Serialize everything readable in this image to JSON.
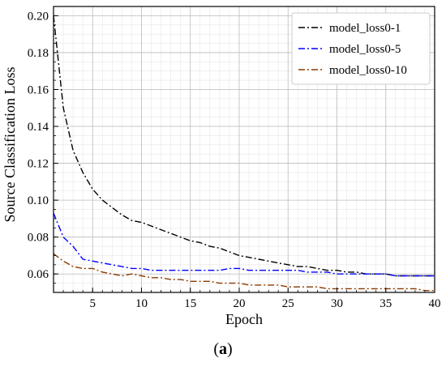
{
  "caption": {
    "open": "(",
    "letter": "a",
    "close": ")"
  },
  "chart_data": {
    "type": "line",
    "xlabel": "Epoch",
    "ylabel": "Source Classification Loss",
    "xlim": [
      1,
      40
    ],
    "ylim": [
      0.05,
      0.205
    ],
    "xticks": [
      5,
      10,
      15,
      20,
      25,
      30,
      35,
      40
    ],
    "yticks": [
      0.06,
      0.08,
      0.1,
      0.12,
      0.14,
      0.16,
      0.18,
      0.2
    ],
    "ytick_labels": [
      "0.06",
      "0.08",
      "0.10",
      "0.12",
      "0.14",
      "0.16",
      "0.18",
      "0.20"
    ],
    "grid": true,
    "minor_grid": true,
    "legend_position": "top-right",
    "x": [
      1,
      2,
      3,
      4,
      5,
      6,
      7,
      8,
      9,
      10,
      11,
      12,
      13,
      14,
      15,
      16,
      17,
      18,
      19,
      20,
      21,
      22,
      23,
      24,
      25,
      26,
      27,
      28,
      29,
      30,
      31,
      32,
      33,
      34,
      35,
      36,
      37,
      38,
      39,
      40
    ],
    "series": [
      {
        "name": "model_loss0-1",
        "color": "#000000",
        "dash": "dashdot",
        "values": [
          0.2,
          0.15,
          0.127,
          0.115,
          0.106,
          0.1,
          0.096,
          0.092,
          0.089,
          0.088,
          0.086,
          0.084,
          0.082,
          0.08,
          0.078,
          0.077,
          0.075,
          0.074,
          0.072,
          0.07,
          0.069,
          0.068,
          0.067,
          0.066,
          0.065,
          0.064,
          0.064,
          0.063,
          0.062,
          0.062,
          0.061,
          0.061,
          0.06,
          0.06,
          0.06,
          0.059,
          0.059,
          0.059,
          0.059,
          0.059
        ]
      },
      {
        "name": "model_loss0-5",
        "color": "#0000ff",
        "dash": "dashdot",
        "values": [
          0.093,
          0.08,
          0.075,
          0.068,
          0.067,
          0.066,
          0.065,
          0.064,
          0.063,
          0.063,
          0.062,
          0.062,
          0.062,
          0.062,
          0.062,
          0.062,
          0.062,
          0.062,
          0.063,
          0.063,
          0.062,
          0.062,
          0.062,
          0.062,
          0.062,
          0.062,
          0.061,
          0.061,
          0.061,
          0.06,
          0.06,
          0.06,
          0.06,
          0.06,
          0.06,
          0.059,
          0.059,
          0.059,
          0.059,
          0.059
        ]
      },
      {
        "name": "model_loss0-10",
        "color": "#8b3a00",
        "dash": "dashdot",
        "values": [
          0.071,
          0.067,
          0.064,
          0.063,
          0.063,
          0.061,
          0.06,
          0.059,
          0.06,
          0.059,
          0.058,
          0.058,
          0.057,
          0.057,
          0.056,
          0.056,
          0.056,
          0.055,
          0.055,
          0.055,
          0.054,
          0.054,
          0.054,
          0.054,
          0.053,
          0.053,
          0.053,
          0.053,
          0.052,
          0.052,
          0.052,
          0.052,
          0.052,
          0.052,
          0.052,
          0.052,
          0.052,
          0.052,
          0.051,
          0.051
        ]
      }
    ]
  }
}
